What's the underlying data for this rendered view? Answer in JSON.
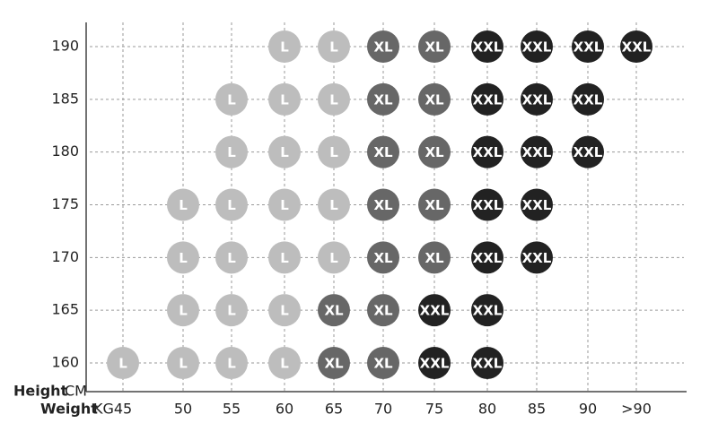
{
  "grid": {
    "y_label": "Height",
    "y_unit": "CM",
    "x_label": "Weight",
    "x_unit": "KG",
    "columns": [
      "45",
      "50",
      "55",
      "60",
      "65",
      "70",
      "75",
      "80",
      "85",
      "90",
      ">90"
    ],
    "colors": {
      "L": "#bdbdbd",
      "XL": "#676767",
      "XXL": "#222222"
    },
    "rows": [
      {
        "height": "190",
        "cells": [
          null,
          null,
          null,
          "L",
          "L",
          "XL",
          "XL",
          "XXL",
          "XXL",
          "XXL",
          "XXL"
        ]
      },
      {
        "height": "185",
        "cells": [
          null,
          null,
          "L",
          "L",
          "L",
          "XL",
          "XL",
          "XXL",
          "XXL",
          "XXL",
          null
        ]
      },
      {
        "height": "180",
        "cells": [
          null,
          null,
          "L",
          "L",
          "L",
          "XL",
          "XL",
          "XXL",
          "XXL",
          "XXL",
          null
        ]
      },
      {
        "height": "175",
        "cells": [
          null,
          "L",
          "L",
          "L",
          "L",
          "XL",
          "XL",
          "XXL",
          "XXL",
          null,
          null
        ]
      },
      {
        "height": "170",
        "cells": [
          null,
          "L",
          "L",
          "L",
          "L",
          "XL",
          "XL",
          "XXL",
          "XXL",
          null,
          null
        ]
      },
      {
        "height": "165",
        "cells": [
          null,
          "L",
          "L",
          "L",
          "XL",
          "XL",
          "XXL",
          "XXL",
          null,
          null,
          null
        ]
      },
      {
        "height": "160",
        "cells": [
          "L",
          "L",
          "L",
          "L",
          "XL",
          "XL",
          "XXL",
          "XXL",
          null,
          null,
          null
        ]
      }
    ]
  }
}
